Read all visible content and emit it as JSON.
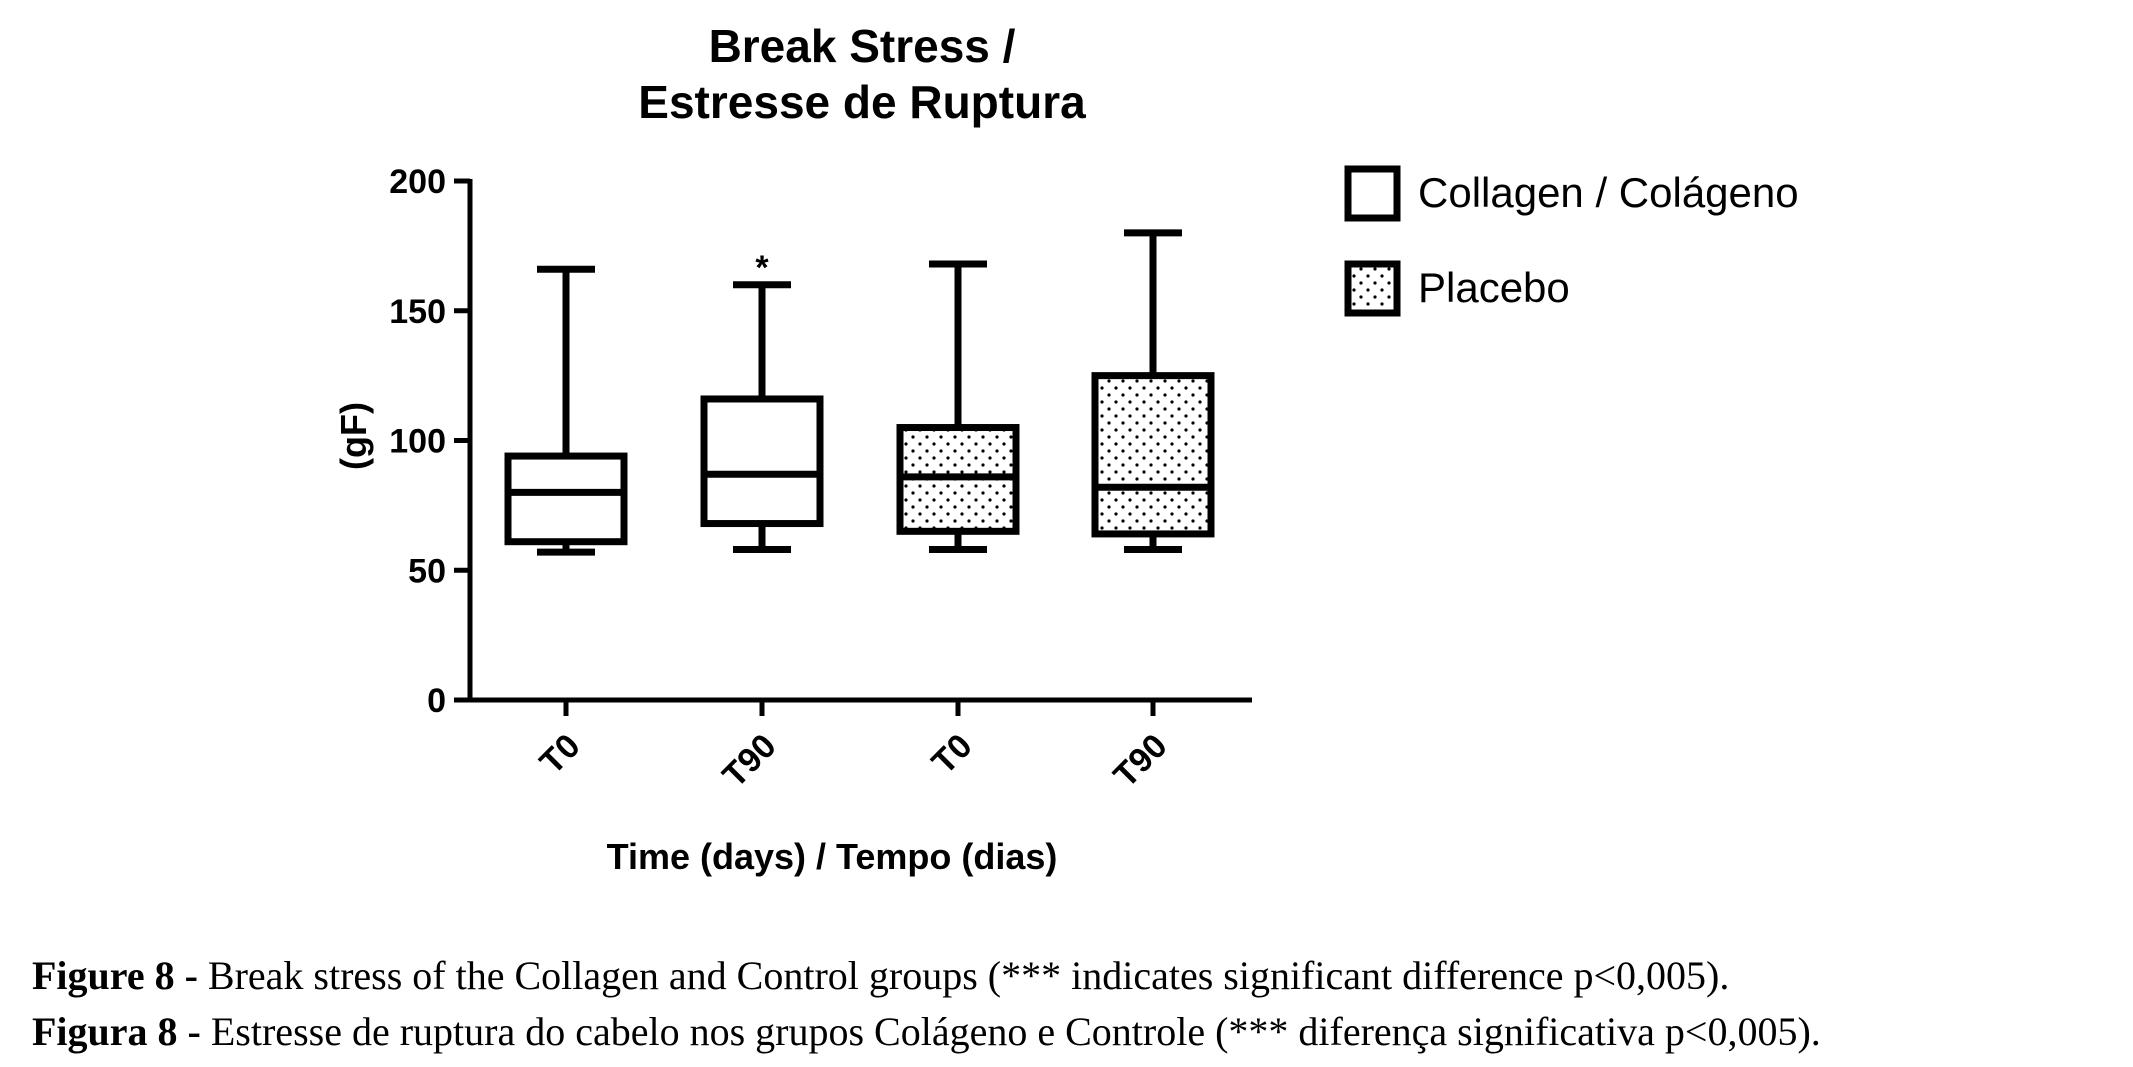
{
  "chart_data": {
    "type": "box",
    "title": [
      "Break Stress /",
      "Estresse de Ruptura"
    ],
    "ylabel": "(gF)",
    "xlabel": "Time (days) / Tempo (dias)",
    "ylim": [
      0,
      200
    ],
    "yticks": [
      0,
      50,
      100,
      150,
      200
    ],
    "categories": [
      "T0",
      "T90",
      "T0",
      "T90"
    ],
    "boxes": [
      {
        "label": "T0",
        "series": "Collagen / Colágeno",
        "min": 57,
        "q1": 61,
        "median": 80,
        "q3": 94,
        "max": 166,
        "annotation": ""
      },
      {
        "label": "T90",
        "series": "Collagen / Colágeno",
        "min": 58,
        "q1": 68,
        "median": 87,
        "q3": 116,
        "max": 160,
        "annotation": "*"
      },
      {
        "label": "T0",
        "series": "Placebo",
        "min": 58,
        "q1": 65,
        "median": 86,
        "q3": 105,
        "max": 168,
        "annotation": ""
      },
      {
        "label": "T90",
        "series": "Placebo",
        "min": 58,
        "q1": 64,
        "median": 82,
        "q3": 125,
        "max": 180,
        "annotation": ""
      }
    ],
    "legend": [
      {
        "name": "Collagen / Colágeno",
        "pattern": "none"
      },
      {
        "name": "Placebo",
        "pattern": "dots"
      }
    ],
    "legend_position": "right"
  },
  "caption": {
    "line1_bold": "Figure 8 -",
    "line1_text": " Break stress of the Collagen and Control groups (*** indicates significant difference p<0,005).",
    "line2_bold": "Figura 8 -",
    "line2_text": "  Estresse de ruptura do cabelo nos grupos Colágeno e Controle (*** diferença significativa p<0,005)."
  }
}
